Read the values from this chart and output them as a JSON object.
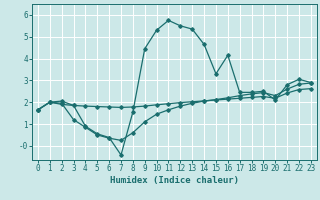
{
  "background_color": "#cce8e8",
  "grid_color": "#ffffff",
  "line_color": "#1a6e6e",
  "xlabel": "Humidex (Indice chaleur)",
  "xlabel_fontsize": 6.5,
  "tick_fontsize": 5.5,
  "xlim": [
    -0.5,
    23.5
  ],
  "ylim": [
    -0.65,
    6.5
  ],
  "yticks": [
    0,
    1,
    2,
    3,
    4,
    5,
    6
  ],
  "ytick_labels": [
    "-0",
    "1",
    "2",
    "3",
    "4",
    "5",
    "6"
  ],
  "xticks": [
    0,
    1,
    2,
    3,
    4,
    5,
    6,
    7,
    8,
    9,
    10,
    11,
    12,
    13,
    14,
    15,
    16,
    17,
    18,
    19,
    20,
    21,
    22,
    23
  ],
  "series1_x": [
    0,
    1,
    2,
    3,
    4,
    5,
    6,
    7,
    8,
    9,
    10,
    11,
    12,
    13,
    14,
    15,
    16,
    17,
    18,
    19,
    20,
    21,
    22,
    23
  ],
  "series1_y": [
    1.65,
    2.0,
    2.05,
    1.85,
    0.9,
    0.55,
    0.38,
    -0.42,
    1.55,
    4.45,
    5.3,
    5.75,
    5.5,
    5.35,
    4.65,
    3.3,
    4.15,
    2.45,
    2.45,
    2.5,
    2.1,
    2.8,
    3.05,
    2.9
  ],
  "series2_x": [
    0,
    1,
    2,
    3,
    4,
    5,
    6,
    7,
    8,
    9,
    10,
    11,
    12,
    13,
    14,
    15,
    16,
    17,
    18,
    19,
    20,
    21,
    22,
    23
  ],
  "series2_y": [
    1.65,
    2.0,
    1.9,
    1.85,
    1.82,
    1.8,
    1.78,
    1.76,
    1.78,
    1.82,
    1.88,
    1.93,
    1.98,
    2.02,
    2.06,
    2.1,
    2.14,
    2.18,
    2.22,
    2.26,
    2.18,
    2.42,
    2.58,
    2.62
  ],
  "series3_x": [
    0,
    1,
    2,
    3,
    4,
    5,
    6,
    7,
    8,
    9,
    10,
    11,
    12,
    13,
    14,
    15,
    16,
    17,
    18,
    19,
    20,
    21,
    22,
    23
  ],
  "series3_y": [
    1.65,
    2.0,
    1.95,
    1.2,
    0.85,
    0.5,
    0.35,
    0.25,
    0.6,
    1.1,
    1.45,
    1.65,
    1.82,
    1.95,
    2.05,
    2.12,
    2.2,
    2.3,
    2.38,
    2.44,
    2.3,
    2.6,
    2.82,
    2.88
  ]
}
